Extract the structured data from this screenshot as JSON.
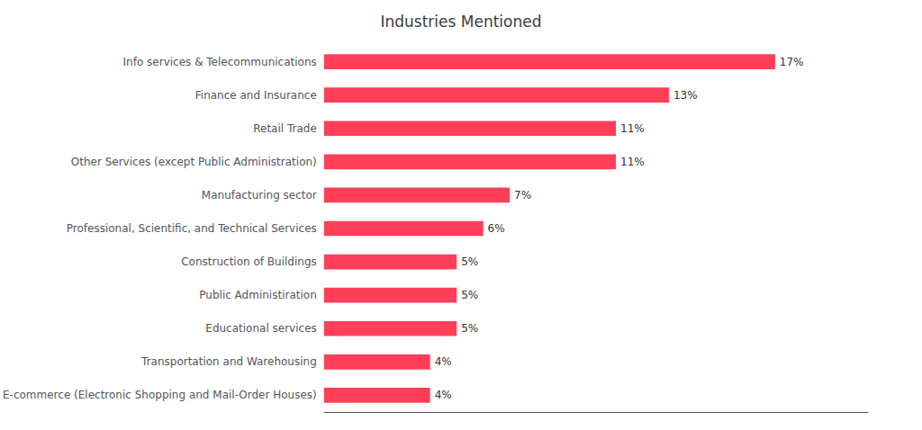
{
  "chart_data": {
    "type": "bar",
    "orientation": "horizontal",
    "title": "Industries Mentioned",
    "categories": [
      "E-commerce (Electronic Shopping and Mail-Order Houses)",
      "Transportation and Warehousing",
      "Educational services",
      "Public Administiration",
      "Construction of Buildings",
      "Professional, Scientific, and Technical Services",
      "Manufacturing sector",
      "Other Services (except Public Administration)",
      "Retail Trade",
      "Finance and Insurance",
      "Info services & Telecommunications"
    ],
    "values": [
      4,
      4,
      5,
      5,
      5,
      6,
      7,
      11,
      11,
      13,
      17
    ],
    "value_labels": [
      "4%",
      "4%",
      "5%",
      "5%",
      "5%",
      "6%",
      "7%",
      "11%",
      "11%",
      "13%",
      "17%"
    ],
    "data_labels": true,
    "color": "#FF3F58",
    "xlim": [
      0,
      20.5
    ],
    "grid": false,
    "tick_labels": "y"
  }
}
